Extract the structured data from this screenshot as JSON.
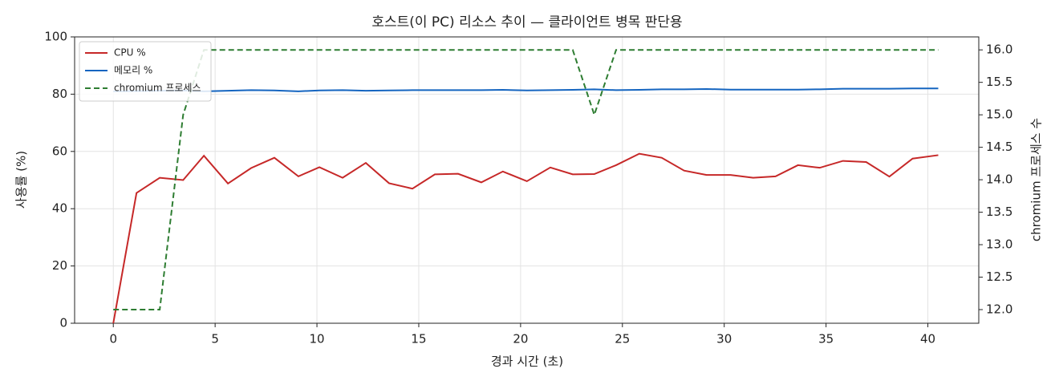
{
  "chart_data": {
    "type": "line",
    "title": "호스트(이 PC) 리소스 추이 — 클라이언트 병목 판단용",
    "xlabel": "경과 시간 (초)",
    "ylabel": "사용률 (%)",
    "y2label": "chromium 프로세스 수",
    "x": [
      0,
      1.14,
      2.28,
      3.43,
      4.45,
      5.63,
      6.77,
      7.91,
      9.09,
      10.12,
      11.26,
      12.4,
      13.54,
      14.69,
      15.79,
      16.93,
      18.07,
      19.13,
      20.31,
      21.46,
      22.56,
      23.62,
      24.69,
      25.83,
      26.93,
      28.03,
      29.13,
      30.31,
      31.42,
      32.52,
      33.62,
      34.69,
      35.83,
      36.97,
      38.11,
      39.25,
      40.51
    ],
    "series": [
      {
        "name": "CPU %",
        "color": "#c62828",
        "dash": false,
        "values": [
          0,
          45.5,
          50.8,
          50,
          58.5,
          48.8,
          54.2,
          57.8,
          51.3,
          54.5,
          50.8,
          56,
          48.9,
          47,
          52,
          52.2,
          49.2,
          53,
          49.6,
          54.4,
          52,
          52.1,
          55.2,
          59.2,
          57.8,
          53.3,
          51.8,
          51.8,
          50.8,
          51.3,
          55.2,
          54.3,
          56.7,
          56.3,
          51.2,
          57.5,
          58.7
        ]
      },
      {
        "name": "메모리 %",
        "color": "#1565c0",
        "dash": false,
        "values": [
          81.0,
          81.1,
          81.2,
          81.3,
          81.0,
          81.2,
          81.4,
          81.3,
          81.0,
          81.3,
          81.4,
          81.2,
          81.3,
          81.4,
          81.4,
          81.4,
          81.4,
          81.5,
          81.3,
          81.4,
          81.5,
          81.7,
          81.4,
          81.5,
          81.7,
          81.7,
          81.8,
          81.6,
          81.6,
          81.6,
          81.6,
          81.7,
          81.9,
          81.9,
          81.9,
          82.0,
          82.0
        ]
      },
      {
        "name": "chromium 프로세스",
        "color": "#2e7d32",
        "dash": true,
        "axis": "y2",
        "values": [
          12,
          12,
          12,
          15,
          16,
          16,
          16,
          16,
          16,
          16,
          16,
          16,
          16,
          16,
          16,
          16,
          16,
          16,
          16,
          16,
          16,
          15,
          16,
          16,
          16,
          16,
          16,
          16,
          16,
          16,
          16,
          16,
          16,
          16,
          16,
          16,
          16
        ]
      }
    ],
    "xlim": [
      -1.9,
      42.5
    ],
    "xticks": [
      0,
      5,
      10,
      15,
      20,
      25,
      30,
      35,
      40
    ],
    "ylim": [
      0,
      100
    ],
    "yticks": [
      0,
      20,
      40,
      60,
      80,
      100
    ],
    "y2lim": [
      11.79,
      16.2
    ],
    "y2ticks": [
      {
        "value": 12,
        "label": "12.0"
      },
      {
        "value": 12.5,
        "label": "12.5"
      },
      {
        "value": 13,
        "label": "13.0"
      },
      {
        "value": 13.5,
        "label": "13.5"
      },
      {
        "value": 14,
        "label": "14.0"
      },
      {
        "value": 14.5,
        "label": "14.5"
      },
      {
        "value": 15,
        "label": "15.0"
      },
      {
        "value": 15.5,
        "label": "15.5"
      },
      {
        "value": 16,
        "label": "16.0"
      }
    ],
    "grid": true,
    "legend": "upper-left"
  }
}
